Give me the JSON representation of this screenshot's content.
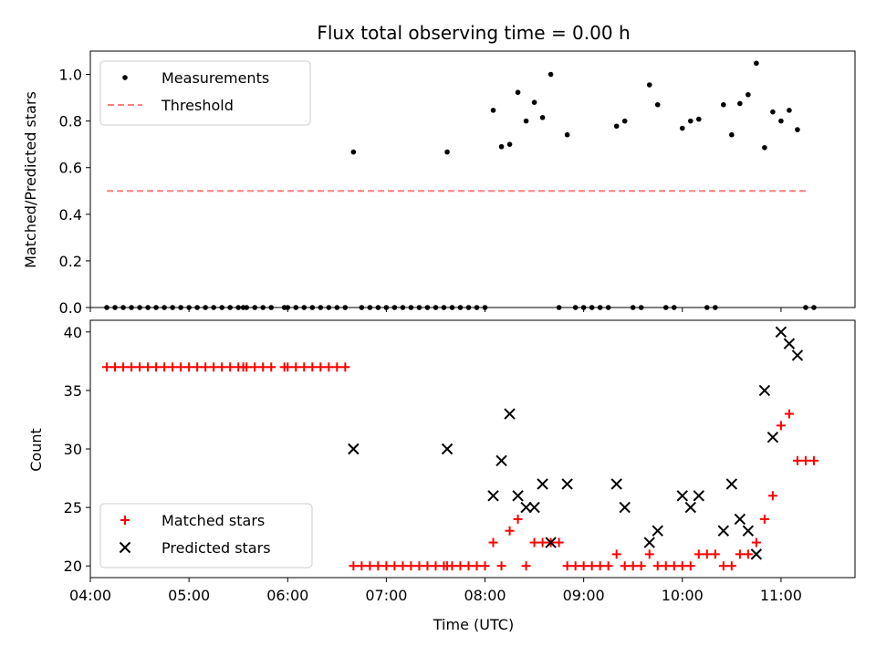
{
  "title": "Flux total observing time = 0.00 h",
  "chart_data": [
    {
      "type": "scatter",
      "ylabel": "Matched/Predicted stars",
      "xlabel": "",
      "xlim": [
        "04:00",
        "11:45"
      ],
      "ylim": [
        0,
        1.1
      ],
      "yticks": [
        "0.0",
        "0.2",
        "0.4",
        "0.6",
        "0.8",
        "1.0"
      ],
      "legend": {
        "placement": "upper-left",
        "entries": [
          {
            "label": "Measurements",
            "marker": "dot",
            "color": "#000000"
          },
          {
            "label": "Threshold",
            "marker": "dashed-line",
            "color": "#ff7f7f"
          }
        ]
      },
      "threshold": {
        "value": 0.5,
        "x_start": "04:10",
        "x_end": "11:17",
        "color": "#ff7f7f"
      },
      "series": [
        {
          "marker": "dot",
          "color": "#000000",
          "points": [
            [
              "04:10",
              0
            ],
            [
              "04:15",
              0
            ],
            [
              "04:20",
              0
            ],
            [
              "04:25",
              0
            ],
            [
              "04:30",
              0
            ],
            [
              "04:35",
              0
            ],
            [
              "04:40",
              0
            ],
            [
              "04:45",
              0
            ],
            [
              "04:50",
              0
            ],
            [
              "04:55",
              0
            ],
            [
              "05:00",
              0
            ],
            [
              "05:05",
              0
            ],
            [
              "05:10",
              0
            ],
            [
              "05:15",
              0
            ],
            [
              "05:20",
              0
            ],
            [
              "05:25",
              0
            ],
            [
              "05:30",
              0
            ],
            [
              "05:33",
              0
            ],
            [
              "05:35",
              0
            ],
            [
              "05:40",
              0
            ],
            [
              "05:45",
              0
            ],
            [
              "05:50",
              0
            ],
            [
              "05:58",
              0
            ],
            [
              "06:00",
              0
            ],
            [
              "06:05",
              0
            ],
            [
              "06:10",
              0
            ],
            [
              "06:15",
              0
            ],
            [
              "06:20",
              0
            ],
            [
              "06:25",
              0
            ],
            [
              "06:30",
              0
            ],
            [
              "06:35",
              0
            ],
            [
              "06:40",
              0.667
            ],
            [
              "06:45",
              0
            ],
            [
              "06:50",
              0
            ],
            [
              "06:55",
              0
            ],
            [
              "07:00",
              0
            ],
            [
              "07:05",
              0
            ],
            [
              "07:10",
              0
            ],
            [
              "07:15",
              0
            ],
            [
              "07:20",
              0
            ],
            [
              "07:25",
              0
            ],
            [
              "07:30",
              0
            ],
            [
              "07:35",
              0
            ],
            [
              "07:37",
              0.667
            ],
            [
              "07:40",
              0
            ],
            [
              "07:45",
              0
            ],
            [
              "07:50",
              0
            ],
            [
              "07:55",
              0
            ],
            [
              "08:00",
              0
            ],
            [
              "08:05",
              0.846
            ],
            [
              "08:10",
              0.69
            ],
            [
              "08:15",
              0.7
            ],
            [
              "08:20",
              0.923
            ],
            [
              "08:25",
              0.8
            ],
            [
              "08:30",
              0.88
            ],
            [
              "08:35",
              0.815
            ],
            [
              "08:40",
              1.0
            ],
            [
              "08:45",
              0
            ],
            [
              "08:50",
              0.741
            ],
            [
              "08:55",
              0
            ],
            [
              "09:00",
              0
            ],
            [
              "09:05",
              0
            ],
            [
              "09:10",
              0
            ],
            [
              "09:15",
              0
            ],
            [
              "09:20",
              0.778
            ],
            [
              "09:25",
              0.8
            ],
            [
              "09:30",
              0
            ],
            [
              "09:35",
              0
            ],
            [
              "09:40",
              0.955
            ],
            [
              "09:45",
              0.87
            ],
            [
              "09:50",
              0
            ],
            [
              "09:55",
              0
            ],
            [
              "10:00",
              0.769
            ],
            [
              "10:05",
              0.8
            ],
            [
              "10:10",
              0.808
            ],
            [
              "10:15",
              0
            ],
            [
              "10:20",
              0
            ],
            [
              "10:25",
              0.87
            ],
            [
              "10:30",
              0.741
            ],
            [
              "10:35",
              0.875
            ],
            [
              "10:40",
              0.913
            ],
            [
              "10:45",
              1.048
            ],
            [
              "10:50",
              0.686
            ],
            [
              "10:55",
              0.839
            ],
            [
              "11:00",
              0.8
            ],
            [
              "11:05",
              0.846
            ],
            [
              "11:10",
              0.763
            ],
            [
              "11:15",
              0
            ],
            [
              "11:20",
              0
            ]
          ]
        }
      ]
    },
    {
      "type": "scatter",
      "ylabel": "Count",
      "xlabel": "Time (UTC)",
      "xlim": [
        "04:00",
        "11:45"
      ],
      "ylim": [
        19,
        41
      ],
      "yticks": [
        "20",
        "25",
        "30",
        "35",
        "40"
      ],
      "xticks": [
        "04:00",
        "05:00",
        "06:00",
        "07:00",
        "08:00",
        "09:00",
        "10:00",
        "11:00"
      ],
      "legend": {
        "placement": "lower-left",
        "entries": [
          {
            "label": "Matched stars",
            "marker": "plus",
            "color": "#ff0000"
          },
          {
            "label": "Predicted stars",
            "marker": "x",
            "color": "#000000"
          }
        ]
      },
      "series": [
        {
          "name": "Matched stars",
          "marker": "plus",
          "color": "#ff0000",
          "points": [
            [
              "04:10",
              37
            ],
            [
              "04:15",
              37
            ],
            [
              "04:20",
              37
            ],
            [
              "04:25",
              37
            ],
            [
              "04:30",
              37
            ],
            [
              "04:35",
              37
            ],
            [
              "04:40",
              37
            ],
            [
              "04:45",
              37
            ],
            [
              "04:50",
              37
            ],
            [
              "04:55",
              37
            ],
            [
              "05:00",
              37
            ],
            [
              "05:05",
              37
            ],
            [
              "05:10",
              37
            ],
            [
              "05:15",
              37
            ],
            [
              "05:20",
              37
            ],
            [
              "05:25",
              37
            ],
            [
              "05:30",
              37
            ],
            [
              "05:33",
              37
            ],
            [
              "05:35",
              37
            ],
            [
              "05:40",
              37
            ],
            [
              "05:45",
              37
            ],
            [
              "05:50",
              37
            ],
            [
              "05:58",
              37
            ],
            [
              "06:00",
              37
            ],
            [
              "06:05",
              37
            ],
            [
              "06:10",
              37
            ],
            [
              "06:15",
              37
            ],
            [
              "06:20",
              37
            ],
            [
              "06:25",
              37
            ],
            [
              "06:30",
              37
            ],
            [
              "06:35",
              37
            ],
            [
              "06:40",
              20
            ],
            [
              "06:45",
              20
            ],
            [
              "06:50",
              20
            ],
            [
              "06:55",
              20
            ],
            [
              "07:00",
              20
            ],
            [
              "07:05",
              20
            ],
            [
              "07:10",
              20
            ],
            [
              "07:15",
              20
            ],
            [
              "07:20",
              20
            ],
            [
              "07:25",
              20
            ],
            [
              "07:30",
              20
            ],
            [
              "07:35",
              20
            ],
            [
              "07:37",
              20
            ],
            [
              "07:40",
              20
            ],
            [
              "07:45",
              20
            ],
            [
              "07:50",
              20
            ],
            [
              "07:55",
              20
            ],
            [
              "08:00",
              20
            ],
            [
              "08:05",
              22
            ],
            [
              "08:10",
              20
            ],
            [
              "08:15",
              23
            ],
            [
              "08:20",
              24
            ],
            [
              "08:25",
              20
            ],
            [
              "08:30",
              22
            ],
            [
              "08:35",
              22
            ],
            [
              "08:40",
              22
            ],
            [
              "08:45",
              22
            ],
            [
              "08:50",
              20
            ],
            [
              "08:55",
              20
            ],
            [
              "09:00",
              20
            ],
            [
              "09:05",
              20
            ],
            [
              "09:10",
              20
            ],
            [
              "09:15",
              20
            ],
            [
              "09:20",
              21
            ],
            [
              "09:25",
              20
            ],
            [
              "09:30",
              20
            ],
            [
              "09:35",
              20
            ],
            [
              "09:40",
              21
            ],
            [
              "09:45",
              20
            ],
            [
              "09:50",
              20
            ],
            [
              "09:55",
              20
            ],
            [
              "10:00",
              20
            ],
            [
              "10:05",
              20
            ],
            [
              "10:10",
              21
            ],
            [
              "10:15",
              21
            ],
            [
              "10:20",
              21
            ],
            [
              "10:25",
              20
            ],
            [
              "10:30",
              20
            ],
            [
              "10:35",
              21
            ],
            [
              "10:40",
              21
            ],
            [
              "10:45",
              22
            ],
            [
              "10:50",
              24
            ],
            [
              "10:55",
              26
            ],
            [
              "11:00",
              32
            ],
            [
              "11:05",
              33
            ],
            [
              "11:10",
              29
            ],
            [
              "11:15",
              29
            ],
            [
              "11:20",
              29
            ]
          ]
        },
        {
          "name": "Predicted stars",
          "marker": "x",
          "color": "#000000",
          "points": [
            [
              "06:40",
              30
            ],
            [
              "07:37",
              30
            ],
            [
              "08:05",
              26
            ],
            [
              "08:10",
              29
            ],
            [
              "08:15",
              33
            ],
            [
              "08:20",
              26
            ],
            [
              "08:25",
              25
            ],
            [
              "08:30",
              25
            ],
            [
              "08:35",
              27
            ],
            [
              "08:40",
              22
            ],
            [
              "08:50",
              27
            ],
            [
              "09:20",
              27
            ],
            [
              "09:25",
              25
            ],
            [
              "09:40",
              22
            ],
            [
              "09:45",
              23
            ],
            [
              "10:00",
              26
            ],
            [
              "10:05",
              25
            ],
            [
              "10:10",
              26
            ],
            [
              "10:25",
              23
            ],
            [
              "10:30",
              27
            ],
            [
              "10:35",
              24
            ],
            [
              "10:40",
              23
            ],
            [
              "10:45",
              21
            ],
            [
              "10:50",
              35
            ],
            [
              "10:55",
              31
            ],
            [
              "11:00",
              40
            ],
            [
              "11:05",
              39
            ],
            [
              "11:10",
              38
            ]
          ]
        }
      ]
    }
  ]
}
